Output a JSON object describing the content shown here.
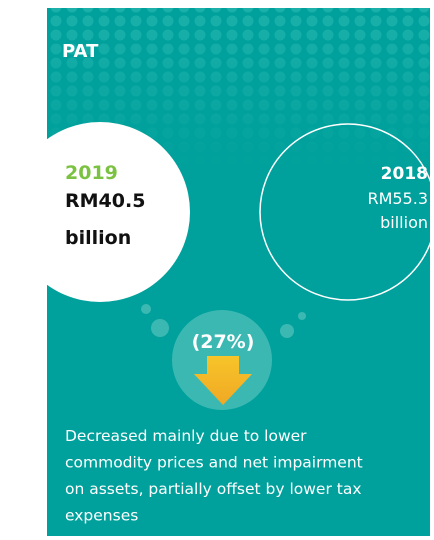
{
  "title": "PAT",
  "current": {
    "year": "2019",
    "amount": "RM40.5",
    "unit": "billion"
  },
  "previous": {
    "year": "2018",
    "amount": "RM55.3",
    "unit": "billion"
  },
  "change": "(27%)",
  "description": [
    "Decreased mainly due to lower",
    "commodity prices and net impairment",
    "on assets, partially offset by lower tax",
    "expenses"
  ]
}
